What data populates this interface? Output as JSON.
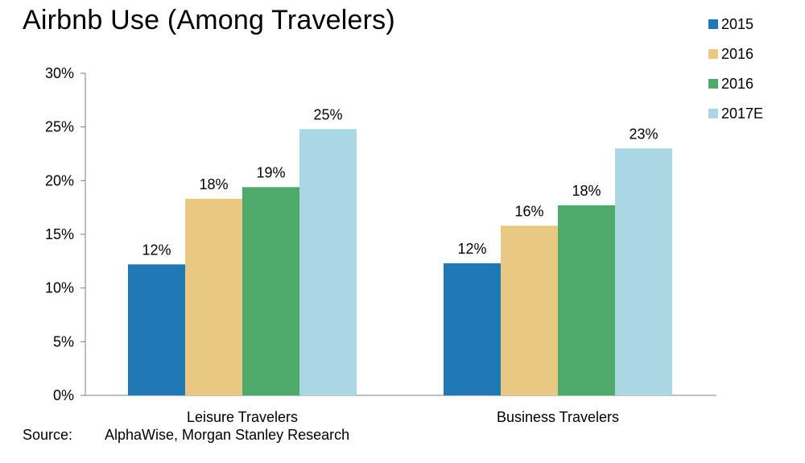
{
  "chart_data": {
    "type": "bar",
    "title": "Airbnb Use (Among Travelers)",
    "categories": [
      "Leisure Travelers",
      "Business Travelers"
    ],
    "series": [
      {
        "name": "2015",
        "color": "#1f78b4",
        "values": [
          12.2,
          12.3
        ],
        "labels": [
          "12%",
          "12%"
        ]
      },
      {
        "name": "2016",
        "color": "#e8c882",
        "values": [
          18.3,
          15.8
        ],
        "labels": [
          "18%",
          "16%"
        ]
      },
      {
        "name": "2016",
        "color": "#4fa96b",
        "values": [
          19.4,
          17.7
        ],
        "labels": [
          "19%",
          "18%"
        ]
      },
      {
        "name": "2017E",
        "color": "#a9d7e3",
        "values": [
          24.8,
          23.0
        ],
        "labels": [
          "25%",
          "23%"
        ]
      }
    ],
    "ylim": [
      0,
      30
    ],
    "yticks": [
      "0%",
      "5%",
      "10%",
      "15%",
      "20%",
      "25%",
      "30%"
    ],
    "ytick_values": [
      0,
      5,
      10,
      15,
      20,
      25,
      30
    ],
    "grid": false,
    "legend_position": "top-right"
  },
  "footer": {
    "source_label": "Source:",
    "source_text": "AlphaWise, Morgan Stanley Research"
  }
}
